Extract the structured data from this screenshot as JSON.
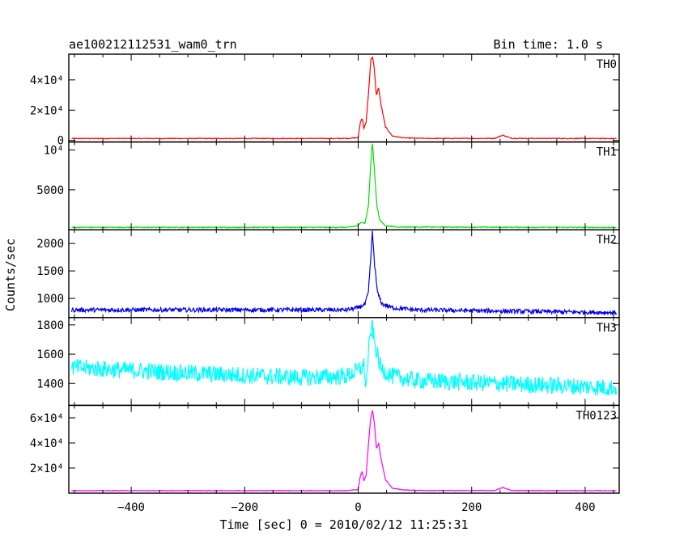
{
  "header": {
    "title": "ae100212112531_wam0_trn",
    "bin_time": "Bin time: 1.0 s"
  },
  "axes": {
    "xlabel": "Time [sec] 0 = 2010/02/12 11:25:31",
    "ylabel": "Counts/sec"
  },
  "chart_data": [
    {
      "type": "line",
      "name": "TH0",
      "color": "#ff0000",
      "xlim": [
        -510,
        460
      ],
      "ylim": [
        -1000,
        57000
      ],
      "baseline": 1300,
      "noise": 250,
      "yticks": [
        {
          "v": 0,
          "label": "0"
        },
        {
          "v": 20000,
          "label": "2×10⁴"
        },
        {
          "v": 40000,
          "label": "4×10⁴"
        }
      ],
      "profile": [
        [
          -510,
          1300
        ],
        [
          -20,
          1300
        ],
        [
          0,
          2000
        ],
        [
          4,
          12000
        ],
        [
          7,
          14500
        ],
        [
          10,
          8000
        ],
        [
          14,
          12000
        ],
        [
          18,
          30000
        ],
        [
          22,
          52000
        ],
        [
          25,
          56000
        ],
        [
          28,
          48000
        ],
        [
          32,
          30000
        ],
        [
          36,
          35000
        ],
        [
          40,
          24000
        ],
        [
          48,
          9000
        ],
        [
          60,
          3000
        ],
        [
          80,
          1700
        ],
        [
          120,
          1350
        ],
        [
          240,
          1350
        ],
        [
          255,
          3500
        ],
        [
          270,
          1400
        ],
        [
          460,
          1250
        ]
      ]
    },
    {
      "type": "line",
      "name": "TH1",
      "color": "#00e000",
      "xlim": [
        -510,
        460
      ],
      "ylim": [
        0,
        11000
      ],
      "baseline": 300,
      "noise": 60,
      "yticks": [
        {
          "v": 5000,
          "label": "5000"
        },
        {
          "v": 10000,
          "label": "10⁴"
        }
      ],
      "profile": [
        [
          -510,
          300
        ],
        [
          -20,
          300
        ],
        [
          0,
          500
        ],
        [
          5,
          1000
        ],
        [
          12,
          800
        ],
        [
          18,
          3000
        ],
        [
          22,
          8000
        ],
        [
          25,
          11000
        ],
        [
          29,
          7000
        ],
        [
          33,
          3000
        ],
        [
          38,
          1200
        ],
        [
          48,
          500
        ],
        [
          70,
          350
        ],
        [
          460,
          280
        ]
      ]
    },
    {
      "type": "line",
      "name": "TH2",
      "color": "#0000ee",
      "xlim": [
        -510,
        460
      ],
      "ylim": [
        650,
        2250
      ],
      "baseline": 790,
      "noise": 40,
      "yticks": [
        {
          "v": 1000,
          "label": "1000"
        },
        {
          "v": 1500,
          "label": "1500"
        },
        {
          "v": 2000,
          "label": "2000"
        }
      ],
      "profile": [
        [
          -510,
          790
        ],
        [
          -20,
          790
        ],
        [
          0,
          830
        ],
        [
          12,
          890
        ],
        [
          18,
          1100
        ],
        [
          22,
          1700
        ],
        [
          25,
          2200
        ],
        [
          29,
          1600
        ],
        [
          34,
          1100
        ],
        [
          42,
          900
        ],
        [
          60,
          830
        ],
        [
          100,
          790
        ],
        [
          460,
          740
        ]
      ]
    },
    {
      "type": "line",
      "name": "TH3",
      "color": "#00ffff",
      "xlim": [
        -510,
        460
      ],
      "ylim": [
        1250,
        1850
      ],
      "baseline": 1500,
      "noise": 60,
      "yticks": [
        {
          "v": 1400,
          "label": "1400"
        },
        {
          "v": 1600,
          "label": "1600"
        },
        {
          "v": 1800,
          "label": "1800"
        }
      ],
      "profile": [
        [
          -510,
          1510
        ],
        [
          -300,
          1470
        ],
        [
          -100,
          1440
        ],
        [
          -20,
          1450
        ],
        [
          0,
          1490
        ],
        [
          10,
          1520
        ],
        [
          14,
          1370
        ],
        [
          18,
          1600
        ],
        [
          24,
          1800
        ],
        [
          30,
          1650
        ],
        [
          40,
          1500
        ],
        [
          60,
          1450
        ],
        [
          100,
          1420
        ],
        [
          460,
          1370
        ]
      ]
    },
    {
      "type": "line",
      "name": "TH0123",
      "color": "#ff00ff",
      "xlim": [
        -510,
        460
      ],
      "ylim": [
        0,
        70000
      ],
      "baseline": 2000,
      "noise": 250,
      "yticks": [
        {
          "v": 20000,
          "label": "2×10⁴"
        },
        {
          "v": 40000,
          "label": "4×10⁴"
        },
        {
          "v": 60000,
          "label": "6×10⁴"
        }
      ],
      "profile": [
        [
          -510,
          2000
        ],
        [
          -20,
          2000
        ],
        [
          0,
          3000
        ],
        [
          4,
          14000
        ],
        [
          7,
          17000
        ],
        [
          10,
          10000
        ],
        [
          14,
          14000
        ],
        [
          18,
          38000
        ],
        [
          22,
          60000
        ],
        [
          25,
          66000
        ],
        [
          28,
          58000
        ],
        [
          32,
          36000
        ],
        [
          36,
          40000
        ],
        [
          40,
          28000
        ],
        [
          48,
          11000
        ],
        [
          60,
          4000
        ],
        [
          80,
          2500
        ],
        [
          120,
          2100
        ],
        [
          240,
          2100
        ],
        [
          255,
          4500
        ],
        [
          270,
          2100
        ],
        [
          460,
          1900
        ]
      ]
    }
  ],
  "xaxis": {
    "ticks": [
      {
        "v": -400,
        "label": "−400"
      },
      {
        "v": -200,
        "label": "−200"
      },
      {
        "v": 0,
        "label": "0"
      },
      {
        "v": 200,
        "label": "200"
      },
      {
        "v": 400,
        "label": "400"
      }
    ]
  }
}
